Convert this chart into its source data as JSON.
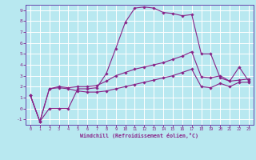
{
  "xlabel": "Windchill (Refroidissement éolien,°C)",
  "background_color": "#b8e8f0",
  "grid_color": "#d0eef5",
  "line_color": "#882288",
  "spine_color": "#6644aa",
  "xlim": [
    -0.5,
    23.5
  ],
  "ylim": [
    -1.5,
    9.5
  ],
  "xticks": [
    0,
    1,
    2,
    3,
    4,
    5,
    6,
    7,
    8,
    9,
    10,
    11,
    12,
    13,
    14,
    15,
    16,
    17,
    18,
    19,
    20,
    21,
    22,
    23
  ],
  "yticks": [
    -1,
    0,
    1,
    2,
    3,
    4,
    5,
    6,
    7,
    8,
    9
  ],
  "series": [
    [
      1.2,
      -1.2,
      0.0,
      0.0,
      0.0,
      1.8,
      1.8,
      1.9,
      3.2,
      5.5,
      7.9,
      9.2,
      9.3,
      9.2,
      8.8,
      8.7,
      8.5,
      8.6,
      5.0,
      5.0,
      2.8,
      2.5,
      3.8,
      2.5
    ],
    [
      1.2,
      -1.2,
      1.8,
      2.0,
      1.9,
      2.0,
      2.0,
      2.1,
      2.5,
      3.0,
      3.3,
      3.6,
      3.8,
      4.0,
      4.2,
      4.5,
      4.8,
      5.2,
      2.9,
      2.8,
      3.0,
      2.5,
      2.6,
      2.7
    ],
    [
      1.2,
      -1.2,
      1.8,
      1.9,
      1.8,
      1.6,
      1.5,
      1.5,
      1.6,
      1.8,
      2.0,
      2.2,
      2.4,
      2.6,
      2.8,
      3.0,
      3.3,
      3.6,
      2.0,
      1.9,
      2.3,
      2.0,
      2.4,
      2.4
    ]
  ],
  "marker": "D",
  "markersize": 1.8,
  "linewidth": 0.8
}
